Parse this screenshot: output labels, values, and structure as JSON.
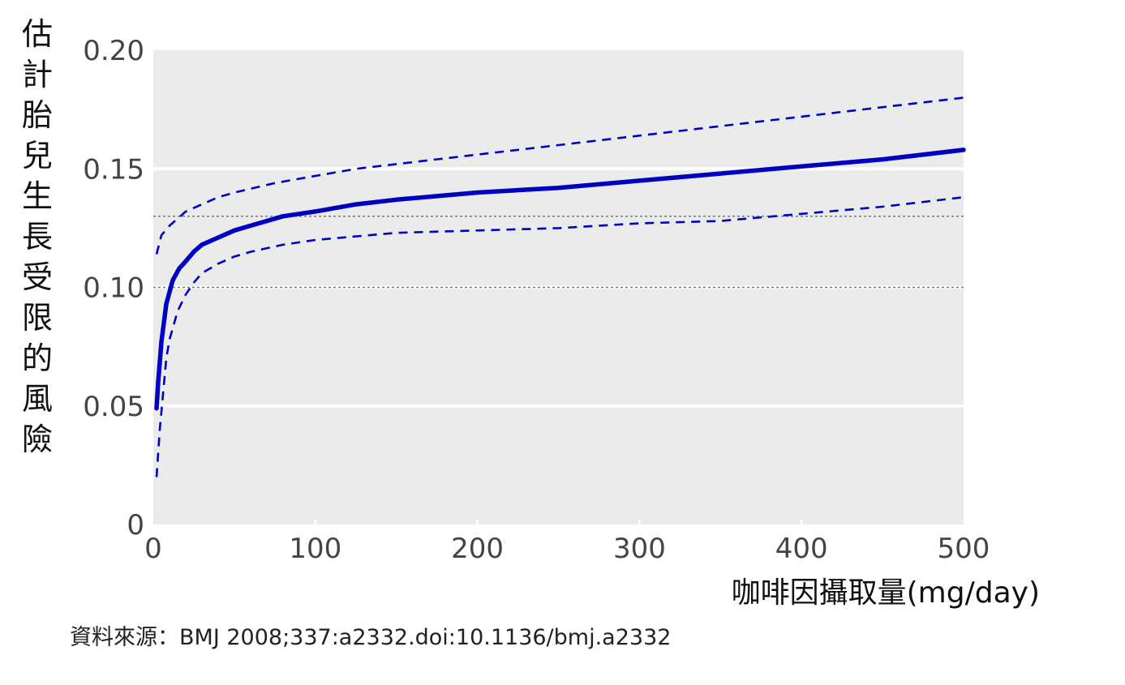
{
  "chart_data": {
    "type": "line",
    "title": "",
    "xlabel": "咖啡因攝取量(mg/day)",
    "ylabel": "估計胎兒生長受限的風險",
    "xlim": [
      0,
      500
    ],
    "ylim": [
      0,
      0.2
    ],
    "x_ticks": [
      "0",
      "100",
      "200",
      "300",
      "400",
      "500"
    ],
    "y_ticks": [
      "0",
      "0.05",
      "0.10",
      "0.15",
      "0.20"
    ],
    "x_tick_values": [
      0,
      100,
      200,
      300,
      400,
      500
    ],
    "y_tick_values": [
      0,
      0.05,
      0.1,
      0.15,
      0.2
    ],
    "reference_lines": [
      0.1,
      0.13
    ],
    "grid": true,
    "series": [
      {
        "style": "solid",
        "color": "#0000c0",
        "x": [
          2,
          3,
          5,
          8,
          12,
          16,
          20,
          25,
          30,
          40,
          50,
          60,
          70,
          80,
          100,
          125,
          150,
          200,
          250,
          300,
          350,
          400,
          450,
          500
        ],
        "y": [
          0.049,
          0.06,
          0.077,
          0.093,
          0.103,
          0.108,
          0.111,
          0.115,
          0.118,
          0.121,
          0.124,
          0.126,
          0.128,
          0.13,
          0.132,
          0.135,
          0.137,
          0.14,
          0.142,
          0.145,
          0.148,
          0.151,
          0.154,
          0.158
        ]
      },
      {
        "style": "dashed",
        "color": "#0000c0",
        "x": [
          2,
          5,
          10,
          15,
          20,
          30,
          40,
          50,
          75,
          100,
          125,
          150,
          200,
          250,
          300,
          350,
          400,
          450,
          500
        ],
        "y": [
          0.114,
          0.122,
          0.126,
          0.129,
          0.132,
          0.135,
          0.138,
          0.14,
          0.144,
          0.147,
          0.15,
          0.152,
          0.156,
          0.16,
          0.164,
          0.168,
          0.172,
          0.176,
          0.18
        ]
      },
      {
        "style": "dashed",
        "color": "#0000c0",
        "x": [
          2,
          4,
          6,
          8,
          10,
          15,
          20,
          25,
          30,
          40,
          50,
          60,
          80,
          100,
          150,
          200,
          250,
          300,
          350,
          400,
          450,
          500
        ],
        "y": [
          0.02,
          0.04,
          0.055,
          0.07,
          0.078,
          0.09,
          0.097,
          0.102,
          0.106,
          0.11,
          0.113,
          0.115,
          0.118,
          0.12,
          0.123,
          0.124,
          0.125,
          0.127,
          0.128,
          0.131,
          0.134,
          0.138
        ]
      }
    ]
  },
  "source_text": "資料來源：BMJ 2008;337:a2332.doi:10.1136/bmj.a2332"
}
